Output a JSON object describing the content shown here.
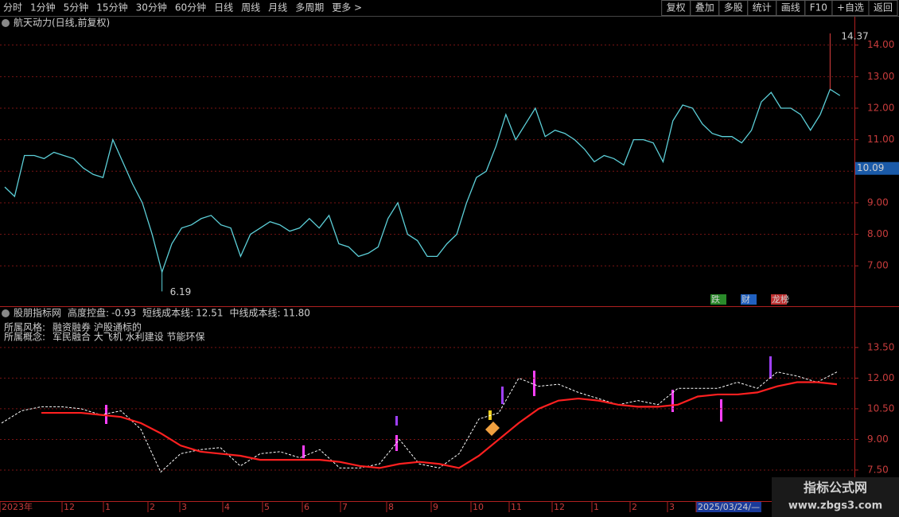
{
  "toolbar": {
    "left": [
      "分时",
      "1分钟",
      "5分钟",
      "15分钟",
      "30分钟",
      "60分钟",
      "日线",
      "周线",
      "月线",
      "多周期",
      "更多 >"
    ],
    "active": 6,
    "right": [
      "复权",
      "叠加",
      "多股",
      "统计",
      "画线",
      "F10",
      "+自选",
      "返回"
    ]
  },
  "chart_data": [
    {
      "type": "line",
      "title": "航天动力(日线,前复权)",
      "color": "#5ccfd8",
      "values": [
        9.5,
        9.2,
        10.5,
        10.5,
        10.4,
        10.6,
        10.5,
        10.4,
        10.1,
        9.9,
        9.8,
        11.0,
        10.3,
        9.6,
        9.0,
        8.0,
        6.8,
        7.7,
        8.2,
        8.3,
        8.5,
        8.6,
        8.3,
        8.2,
        7.3,
        8.0,
        8.2,
        8.4,
        8.3,
        8.1,
        8.2,
        8.5,
        8.2,
        8.6,
        7.7,
        7.6,
        7.3,
        7.4,
        7.6,
        8.5,
        9.0,
        8.0,
        7.8,
        7.3,
        7.3,
        7.7,
        8.0,
        9.0,
        9.8,
        10.0,
        10.8,
        11.8,
        11.0,
        11.5,
        12.0,
        11.1,
        11.3,
        11.2,
        11.0,
        10.7,
        10.3,
        10.5,
        10.4,
        10.2,
        11.0,
        11.0,
        10.9,
        10.3,
        11.6,
        12.1,
        12.0,
        11.5,
        11.2,
        11.1,
        11.1,
        10.9,
        11.3,
        12.2,
        12.5,
        12.0,
        12.0,
        11.8,
        11.3,
        11.8,
        12.6,
        12.4
      ],
      "ylim": [
        5.72,
        14.9
      ],
      "yticks": [
        {
          "value": 7,
          "label": "7.00"
        },
        {
          "value": 8,
          "label": "8.00"
        },
        {
          "value": 9,
          "label": "9.00"
        },
        {
          "value": 10,
          "label": "10.00"
        },
        {
          "value": 11,
          "label": "11.00"
        },
        {
          "value": 12,
          "label": "12.00"
        },
        {
          "value": 13,
          "label": "13.00"
        },
        {
          "value": 14,
          "label": "14.00"
        }
      ],
      "grid": true,
      "high": 14.37,
      "low": 6.19,
      "last_price": 10.09,
      "badges": [
        "跌",
        "财",
        "龙榜"
      ]
    },
    {
      "type": "line",
      "title": "股朋指标网",
      "readouts": [
        {
          "label": "高度控盘:",
          "value": "-0.93",
          "color": "#dddddd"
        },
        {
          "label": "短线成本线:",
          "value": "12.51",
          "color": "#dddddd"
        },
        {
          "label": "中线成本线:",
          "value": "11.80",
          "color": "#ff3030"
        }
      ],
      "style_label": "所属风格:",
      "style": "融资融券 沪股通标的",
      "concept_label": "所属概念:",
      "concept": "军民融合 大飞机 水利建设 节能环保",
      "series": [
        {
          "color": "#ffffff",
          "dashed": true,
          "values": [
            9.8,
            10.4,
            10.6,
            10.6,
            10.5,
            10.2,
            10.4,
            9.5,
            7.4,
            8.3,
            8.5,
            8.6,
            7.7,
            8.3,
            8.4,
            8.1,
            8.5,
            7.6,
            7.6,
            7.8,
            9.0,
            7.8,
            7.6,
            8.3,
            10.0,
            10.3,
            12.0,
            11.6,
            11.7,
            11.3,
            11.0,
            10.7,
            10.9,
            10.7,
            11.5,
            11.5,
            11.5,
            11.8,
            11.5,
            12.3,
            12.1,
            11.8,
            12.3
          ]
        },
        {
          "color": "#ff2020",
          "dashed": false,
          "values": [
            null,
            null,
            10.3,
            10.3,
            10.3,
            10.2,
            10.1,
            9.8,
            9.3,
            8.7,
            8.4,
            8.3,
            8.2,
            8.0,
            8.0,
            8.0,
            8.0,
            7.9,
            7.7,
            7.6,
            7.8,
            7.9,
            7.8,
            7.6,
            8.2,
            9.0,
            9.8,
            10.5,
            10.9,
            11.0,
            10.9,
            10.7,
            10.6,
            10.6,
            10.7,
            11.1,
            11.2,
            11.2,
            11.3,
            11.6,
            11.8,
            11.8,
            11.7
          ]
        }
      ],
      "ylim": [
        5.98,
        15.52
      ],
      "yticks": [
        {
          "value": 7.5,
          "label": "7.50"
        },
        {
          "value": 9,
          "label": "9.00"
        },
        {
          "value": 10.5,
          "label": "10.50"
        },
        {
          "value": 12,
          "label": "12.00"
        },
        {
          "value": 13.5,
          "label": "13.50"
        }
      ],
      "grid": true
    }
  ],
  "dates": [
    "2023年",
    "12",
    "1",
    "2",
    "3",
    "4",
    "5",
    "6",
    "7",
    "8",
    "9",
    "10",
    "11",
    "12",
    "1",
    "2",
    "3",
    "2025/03/24/—"
  ],
  "watermark": {
    "title": "指标公式网",
    "url": "www.zbgs3.com"
  }
}
